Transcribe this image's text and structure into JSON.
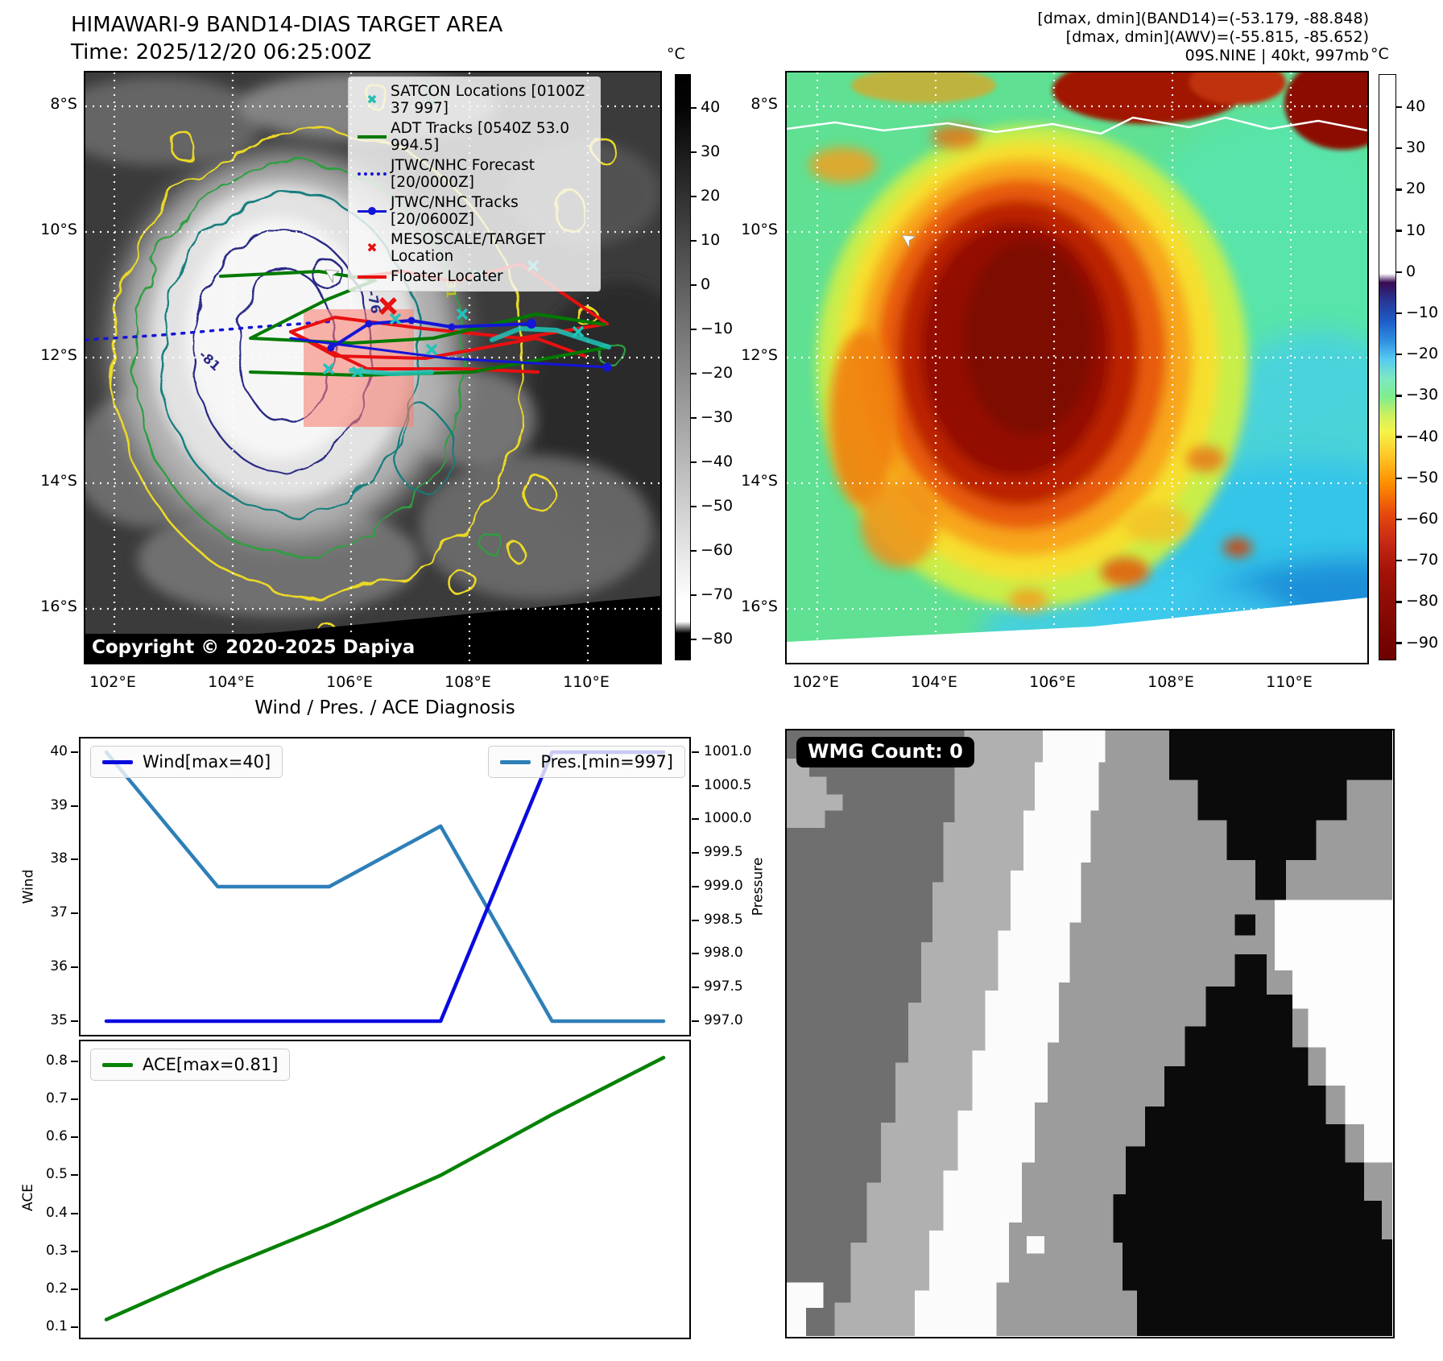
{
  "band14_panel": {
    "title": "HIMAWARI-9 BAND14-DIAS TARGET AREA",
    "time_label": "Time: 2025/12/20 06:25:00Z",
    "copyright": "Copyright © 2020-2025 Dapiya",
    "legend_items": [
      {
        "label": "SATCON Locations [0100Z 37 997]",
        "marker": "x",
        "color": "#25beb4"
      },
      {
        "label": "ADT Tracks [0540Z 53.0 994.5]",
        "marker": "line",
        "color": "#007a00"
      },
      {
        "label": "JTWC/NHC Forecast [20/0000Z]",
        "marker": "dotted",
        "color": "#1515d8"
      },
      {
        "label": "JTWC/NHC Tracks [20/0600Z]",
        "marker": "line-dot",
        "color": "#1515d8"
      },
      {
        "label": "MESOSCALE/TARGET Location",
        "marker": "x",
        "color": "#e81010"
      },
      {
        "label": "Floater Locater",
        "marker": "line",
        "color": "#e81010"
      }
    ],
    "lat_ticks": [
      "8°S",
      "10°S",
      "12°S",
      "14°S",
      "16°S"
    ],
    "lon_ticks": [
      "102°E",
      "104°E",
      "106°E",
      "108°E",
      "110°E"
    ],
    "colorbar": {
      "unit": "°C",
      "ticks": [
        "40",
        "30",
        "20",
        "10",
        "0",
        "−10",
        "−20",
        "−30",
        "−40",
        "−50",
        "−60",
        "−70",
        "−80"
      ]
    },
    "contour_labels": [
      {
        "text": "-76"
      },
      {
        "text": "-81"
      },
      {
        "text": "31"
      }
    ]
  },
  "awv_panel": {
    "info_line1": "[dmax, dmin](BAND14)=(-53.179, -88.848)",
    "info_line2": "[dmax, dmin](AWV)=(-55.815, -85.652)",
    "info_line3": "09S.NINE | 40kt, 997mb",
    "lat_ticks": [
      "8°S",
      "10°S",
      "12°S",
      "14°S",
      "16°S"
    ],
    "lon_ticks": [
      "102°E",
      "104°E",
      "106°E",
      "108°E",
      "110°E"
    ],
    "colorbar": {
      "unit": "°C",
      "ticks": [
        "40",
        "30",
        "20",
        "10",
        "0",
        "−10",
        "−20",
        "−30",
        "−40",
        "−50",
        "−60",
        "−70",
        "−80",
        "−90"
      ]
    }
  },
  "diagnosis": {
    "title": "Wind / Pres. / ACE Diagnosis",
    "top_chart": {
      "left_axis_label": "Wind",
      "right_axis_label": "Pressure",
      "left_ticks": [
        "40",
        "39",
        "38",
        "37",
        "36",
        "35"
      ],
      "right_ticks": [
        "1001.0",
        "1000.5",
        "1000.0",
        "999.5",
        "999.0",
        "998.5",
        "998.0",
        "997.5",
        "997.0"
      ],
      "wind_legend": "Wind[max=40]",
      "pres_legend": "Pres.[min=997]"
    },
    "bottom_chart": {
      "axis_label": "ACE",
      "left_ticks": [
        "0.8",
        "0.7",
        "0.6",
        "0.5",
        "0.4",
        "0.3",
        "0.2",
        "0.1"
      ],
      "ace_legend": "ACE[max=0.81]"
    }
  },
  "wmg_panel": {
    "count_label": "WMG Count: 0"
  },
  "colors": {
    "wind_line": "#0a0adf",
    "pressure_line": "#2e7fb8",
    "ace_line": "#068206",
    "floater_red": "#e81010",
    "adt_green": "#007a00",
    "satcon_cyan": "#25beb4",
    "forecast_blue": "#1515d8",
    "target_pink": "#fa8072"
  },
  "chart_data": [
    {
      "type": "heatmap",
      "title": "HIMAWARI-9 BAND14-DIAS TARGET AREA",
      "subtitle": "Time: 2025/12/20 06:25:00Z",
      "x_ticks": [
        "102°E",
        "104°E",
        "106°E",
        "108°E",
        "110°E"
      ],
      "y_ticks": [
        "8°S",
        "10°S",
        "12°S",
        "14°S",
        "16°S"
      ],
      "colorbar": {
        "unit": "°C",
        "min": -80,
        "max": 40,
        "ticks": [
          40,
          30,
          20,
          10,
          0,
          -10,
          -20,
          -30,
          -40,
          -50,
          -60,
          -70,
          -80
        ]
      },
      "legend": [
        "SATCON Locations [0100Z 37 997]",
        "ADT Tracks [0540Z 53.0 994.5]",
        "JTWC/NHC Forecast [20/0000Z]",
        "JTWC/NHC Tracks [20/0600Z]",
        "MESOSCALE/TARGET Location",
        "Floater Locater"
      ],
      "annotations": [
        "-76",
        "-81",
        "31",
        "Copyright © 2020-2025 Dapiya"
      ]
    },
    {
      "type": "heatmap",
      "title": "09S.NINE | 40kt, 997mb",
      "x_ticks": [
        "102°E",
        "104°E",
        "106°E",
        "108°E",
        "110°E"
      ],
      "y_ticks": [
        "8°S",
        "10°S",
        "12°S",
        "14°S",
        "16°S"
      ],
      "colorbar": {
        "unit": "°C",
        "min": -90,
        "max": 40,
        "ticks": [
          40,
          30,
          20,
          10,
          0,
          -10,
          -20,
          -30,
          -40,
          -50,
          -60,
          -70,
          -80,
          -90
        ]
      },
      "annotations": [
        "[dmax, dmin](BAND14)=(-53.179, -88.848)",
        "[dmax, dmin](AWV)=(-55.815, -85.652)"
      ]
    },
    {
      "type": "line",
      "title": "Wind / Pres. / ACE Diagnosis",
      "x": [
        0,
        0.2,
        0.4,
        0.6,
        0.8,
        1.0
      ],
      "series": [
        {
          "name": "Wind[max=40]",
          "axis": "left",
          "ylabel": "Wind",
          "ylim": [
            35,
            40
          ],
          "values": [
            35,
            35,
            35,
            35,
            40,
            40
          ],
          "color": "#0a0adf"
        },
        {
          "name": "Pres.[min=997]",
          "axis": "right",
          "ylabel": "Pressure",
          "ylim": [
            997,
            1001
          ],
          "values": [
            1001,
            999,
            999,
            999.9,
            997,
            997
          ],
          "color": "#2e7fb8"
        }
      ],
      "yticks_left": [
        40,
        39,
        38,
        37,
        36,
        35
      ],
      "yticks_right": [
        1001.0,
        1000.5,
        1000.0,
        999.5,
        999.0,
        998.5,
        998.0,
        997.5,
        997.0
      ],
      "grid": false,
      "legend_position": "upper-left / upper-right"
    },
    {
      "type": "line",
      "x": [
        0,
        0.2,
        0.4,
        0.6,
        0.8,
        1.0
      ],
      "series": [
        {
          "name": "ACE[max=0.81]",
          "ylabel": "ACE",
          "ylim": [
            0.1,
            0.8
          ],
          "values": [
            0.12,
            0.25,
            0.37,
            0.5,
            0.66,
            0.81
          ],
          "color": "#068206"
        }
      ],
      "yticks_left": [
        0.8,
        0.7,
        0.6,
        0.5,
        0.4,
        0.3,
        0.2,
        0.1
      ],
      "grid": false,
      "legend_position": "upper-left"
    },
    {
      "type": "other",
      "label": "WMG Count: 0"
    }
  ]
}
